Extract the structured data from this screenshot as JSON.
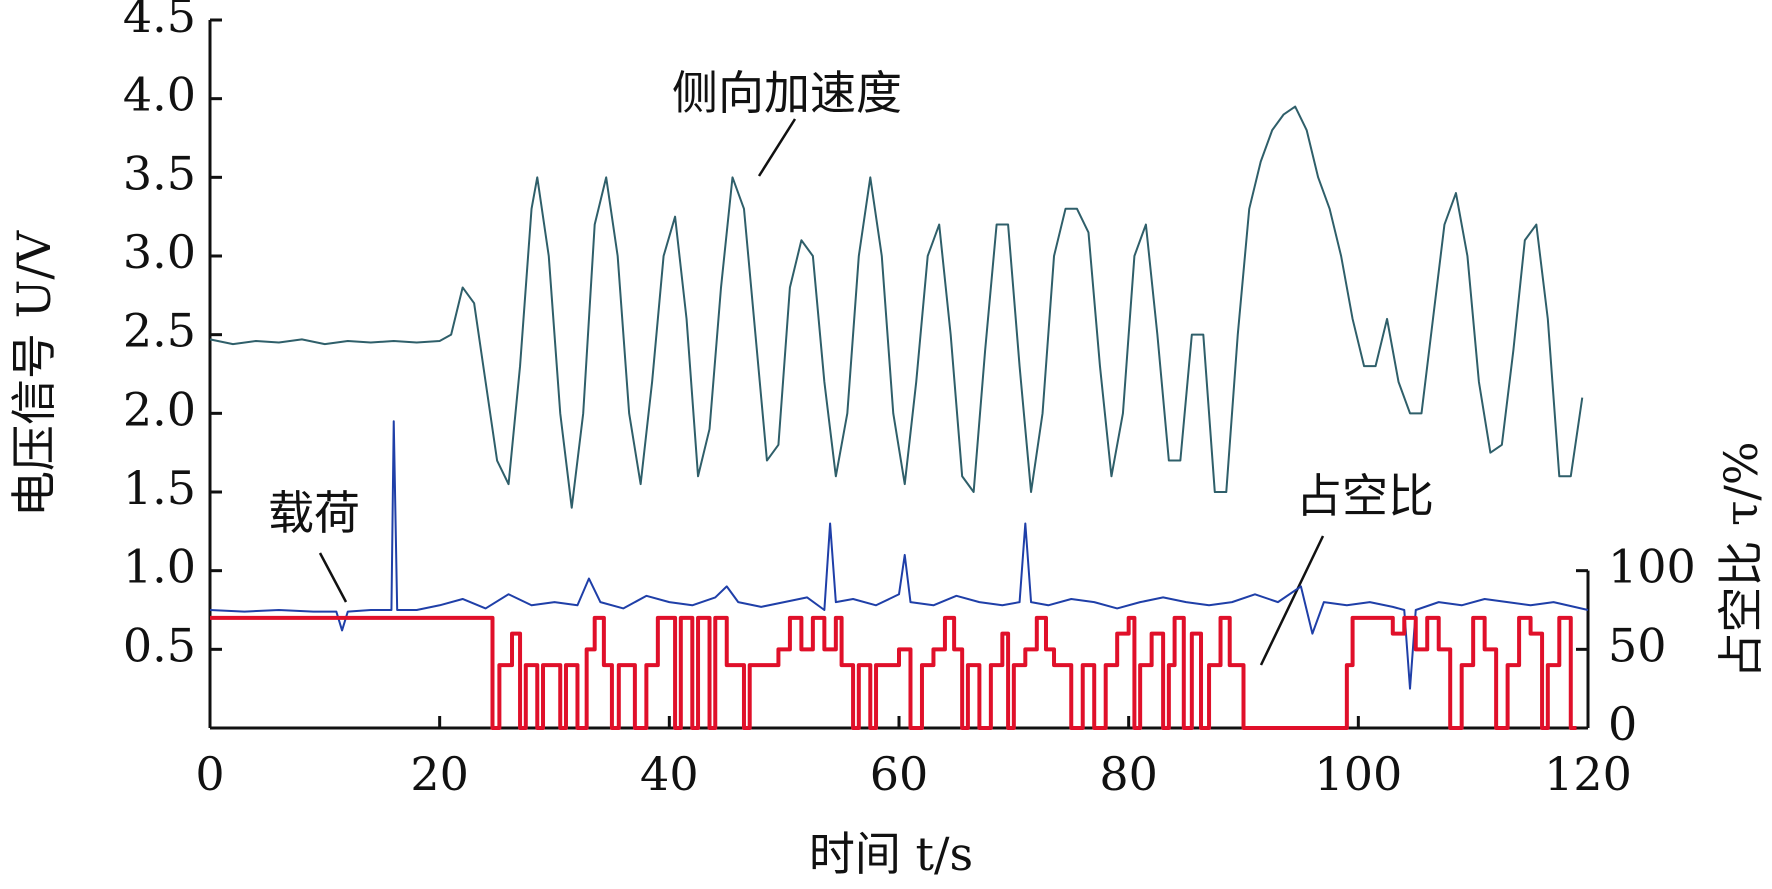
{
  "chart_data": {
    "type": "line",
    "ylabel": "电压信号 U/V",
    "xlabel": "时间 t/s",
    "y2label": "占空比 τ/%",
    "xlim": [
      0,
      120
    ],
    "xticks": [
      0,
      20,
      40,
      60,
      80,
      100,
      120
    ],
    "ylim": [
      0,
      4.5
    ],
    "yticks": [
      {
        "value": 0.5,
        "label": "0.5"
      },
      {
        "value": 1.0,
        "label": "1.0"
      },
      {
        "value": 1.5,
        "label": "1.5"
      },
      {
        "value": 2.0,
        "label": "2.0"
      },
      {
        "value": 2.5,
        "label": "2.5"
      },
      {
        "value": 3.0,
        "label": "3.0"
      },
      {
        "value": 3.5,
        "label": "3.5"
      },
      {
        "value": 4.0,
        "label": "4.0"
      },
      {
        "value": 4.5,
        "label": "4.5"
      }
    ],
    "y2lim": [
      0,
      450
    ],
    "y2ticks": [
      0,
      50,
      100
    ],
    "series": [
      {
        "name": "侧向加速度",
        "color": "#2f5f6a",
        "x": [
          0,
          2,
          4,
          6,
          8,
          10,
          12,
          14,
          16,
          18,
          20,
          21,
          22,
          23,
          24,
          25,
          26,
          27,
          28,
          28.5,
          29.5,
          30.5,
          31.5,
          32.5,
          33.5,
          34.5,
          35.5,
          36.5,
          37.5,
          38.5,
          39.5,
          40.5,
          41.5,
          42.5,
          43.5,
          44.5,
          45.5,
          46.5,
          47.5,
          48.5,
          49.5,
          50.5,
          51.5,
          52.5,
          53.5,
          54.5,
          55.5,
          56.5,
          57.5,
          58.5,
          59.5,
          60.5,
          61.5,
          62.5,
          63.5,
          64.5,
          65.5,
          66.5,
          67.5,
          68.5,
          69.5,
          70.5,
          71.5,
          72.5,
          73.5,
          74.5,
          75.5,
          76.5,
          77.5,
          78.5,
          79.5,
          80.5,
          81.5,
          82.5,
          83.5,
          84.5,
          85.5,
          86.5,
          87.5,
          88.5,
          89.5,
          90.5,
          91.5,
          92.5,
          93.5,
          94.5,
          95.5,
          96.5,
          97.5,
          98.5,
          99.5,
          100.5,
          101.5,
          102.5,
          103.5,
          104.5,
          105.5,
          106.5,
          107.5,
          108.5,
          109.5,
          110.5,
          111.5,
          112.5,
          113.5,
          114.5,
          115.5,
          116.5,
          117.5,
          118.5,
          119.5
        ],
        "values": [
          2.47,
          2.44,
          2.46,
          2.45,
          2.47,
          2.44,
          2.46,
          2.45,
          2.46,
          2.45,
          2.46,
          2.5,
          2.8,
          2.7,
          2.2,
          1.7,
          1.55,
          2.3,
          3.3,
          3.5,
          3.0,
          2.0,
          1.4,
          2.0,
          3.2,
          3.5,
          3.0,
          2.0,
          1.55,
          2.2,
          3.0,
          3.25,
          2.6,
          1.6,
          1.9,
          2.8,
          3.5,
          3.3,
          2.5,
          1.7,
          1.8,
          2.8,
          3.1,
          3.0,
          2.2,
          1.6,
          2.0,
          3.0,
          3.5,
          3.0,
          2.0,
          1.55,
          2.2,
          3.0,
          3.2,
          2.5,
          1.6,
          1.5,
          2.4,
          3.2,
          3.2,
          2.3,
          1.5,
          2.0,
          3.0,
          3.3,
          3.3,
          3.15,
          2.3,
          1.6,
          2.0,
          3.0,
          3.2,
          2.5,
          1.7,
          1.7,
          2.5,
          2.5,
          1.5,
          1.5,
          2.5,
          3.3,
          3.6,
          3.8,
          3.9,
          3.95,
          3.8,
          3.5,
          3.3,
          3.0,
          2.6,
          2.3,
          2.3,
          2.6,
          2.2,
          2.0,
          2.0,
          2.6,
          3.2,
          3.4,
          3.0,
          2.2,
          1.75,
          1.8,
          2.4,
          3.1,
          3.2,
          2.6,
          1.6,
          1.6,
          2.1
        ]
      },
      {
        "name": "载荷",
        "color": "#1f3fa8",
        "x": [
          0,
          3,
          6,
          9,
          11,
          11.5,
          12,
          14,
          15.8,
          16,
          16.3,
          18,
          20,
          22,
          24,
          26,
          28,
          30,
          32,
          33,
          34,
          36,
          38,
          40,
          42,
          44,
          45,
          46,
          48,
          50,
          52,
          53.5,
          54,
          54.5,
          56,
          58,
          60,
          60.5,
          61,
          63,
          65,
          67,
          69,
          70.5,
          71,
          71.5,
          73,
          75,
          77,
          79,
          81,
          83,
          85,
          87,
          89,
          91,
          93,
          95,
          96,
          97,
          99,
          101,
          103,
          104,
          104.5,
          105,
          107,
          109,
          111,
          113,
          115,
          117,
          120
        ],
        "values": [
          0.75,
          0.74,
          0.75,
          0.74,
          0.74,
          0.62,
          0.74,
          0.75,
          0.75,
          1.95,
          0.75,
          0.75,
          0.78,
          0.82,
          0.76,
          0.85,
          0.78,
          0.8,
          0.78,
          0.95,
          0.8,
          0.76,
          0.84,
          0.8,
          0.78,
          0.83,
          0.9,
          0.8,
          0.77,
          0.8,
          0.83,
          0.75,
          1.3,
          0.8,
          0.82,
          0.78,
          0.85,
          1.1,
          0.8,
          0.78,
          0.84,
          0.8,
          0.78,
          0.8,
          1.3,
          0.8,
          0.78,
          0.82,
          0.8,
          0.76,
          0.8,
          0.83,
          0.8,
          0.78,
          0.8,
          0.85,
          0.8,
          0.9,
          0.6,
          0.8,
          0.78,
          0.8,
          0.77,
          0.75,
          0.25,
          0.75,
          0.8,
          0.78,
          0.82,
          0.8,
          0.78,
          0.8,
          0.75
        ]
      },
      {
        "name": "占空比",
        "color": "#e0102a",
        "axis": "y2",
        "step": true,
        "x": [
          0,
          24.6,
          25.2,
          26.3,
          27,
          27.5,
          28.5,
          29,
          30.5,
          31,
          32,
          32.8,
          33.5,
          34.3,
          35,
          35.6,
          37,
          38,
          39,
          40.5,
          41,
          42,
          42.5,
          43.5,
          44,
          45,
          46.5,
          47,
          49.5,
          50.5,
          51.5,
          52.5,
          53.5,
          54.5,
          55,
          56,
          56.5,
          57.5,
          58,
          60,
          61,
          62,
          63,
          64,
          64.8,
          65.5,
          66,
          67,
          68,
          69,
          69.5,
          70,
          71,
          72,
          72.8,
          73.5,
          75,
          76,
          77,
          78,
          79,
          80,
          80.5,
          81,
          82,
          83,
          83.5,
          84,
          84.8,
          85.5,
          86.3,
          87,
          88,
          88.8,
          90,
          99,
          99.5,
          103,
          104,
          105,
          106,
          107,
          108,
          109,
          110,
          111,
          112,
          113,
          114,
          115,
          116,
          116.5,
          117.5,
          118.5,
          119
        ],
        "values": [
          70,
          0,
          40,
          60,
          0,
          40,
          0,
          40,
          0,
          40,
          0,
          50,
          70,
          40,
          0,
          40,
          0,
          40,
          70,
          0,
          70,
          0,
          70,
          0,
          70,
          40,
          0,
          40,
          50,
          70,
          50,
          70,
          50,
          70,
          40,
          0,
          40,
          0,
          40,
          50,
          0,
          40,
          50,
          70,
          50,
          0,
          40,
          0,
          40,
          60,
          0,
          40,
          50,
          70,
          50,
          40,
          0,
          40,
          0,
          40,
          60,
          70,
          0,
          40,
          60,
          0,
          40,
          70,
          0,
          60,
          0,
          40,
          70,
          40,
          0,
          40,
          70,
          60,
          70,
          50,
          70,
          50,
          0,
          40,
          70,
          50,
          0,
          40,
          70,
          60,
          0,
          40,
          70,
          0,
          0
        ]
      }
    ]
  }
}
